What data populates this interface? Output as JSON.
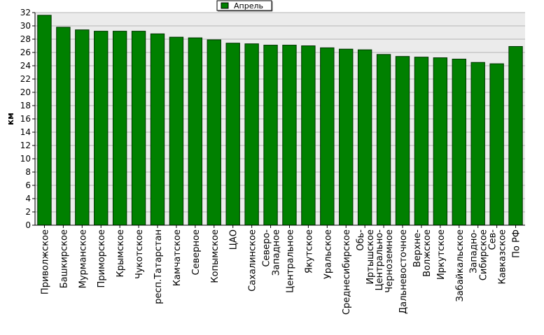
{
  "chart_data": {
    "type": "bar",
    "title": "",
    "xlabel": "",
    "ylabel": "км",
    "ylim": [
      0,
      32
    ],
    "ytick_step": 2,
    "grid": true,
    "legend_position": "top-center",
    "colors": {
      "bar": "#008000",
      "bar_stroke": "#003300",
      "plot_bg": "#ebebeb",
      "grid": "#b4b4b4"
    },
    "series": [
      {
        "name": "Апрель",
        "values": [
          31.6,
          29.8,
          29.4,
          29.2,
          29.2,
          29.2,
          28.8,
          28.3,
          28.2,
          27.9,
          27.4,
          27.3,
          27.1,
          27.1,
          27.0,
          26.7,
          26.5,
          26.4,
          25.7,
          25.4,
          25.3,
          25.2,
          25.0,
          24.5,
          24.3,
          26.9
        ]
      }
    ],
    "categories": [
      "Приволжское",
      "Башкирское",
      "Мурманское",
      "Приморское",
      "Крымское",
      "Чукотское",
      "респ.Татарстан",
      "Камчатское",
      "Северное",
      "Копымское",
      "ЦАО",
      "Сахалинское",
      "Северо-\nЗападное",
      "Центральное",
      "Якутское",
      "Уральское",
      "Среднесибирское",
      "Обь-\nИртышское",
      "Центрально-\nЧерноземное",
      "Дальневосточное",
      "Верхне-\nВолжское",
      "Иркутское",
      "Забайкальское",
      "Западно-\nСибирское",
      "Сев-\nКавказское",
      "По РФ"
    ]
  }
}
